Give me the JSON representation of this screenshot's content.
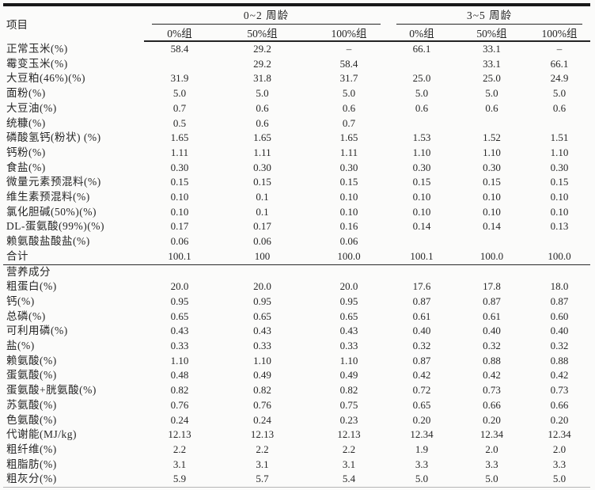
{
  "table": {
    "item_header": "项目",
    "groups": [
      {
        "label": "0~2 周龄",
        "columns": [
          "0%组",
          "50%组",
          "100%组"
        ]
      },
      {
        "label": "3~5 周龄",
        "columns": [
          "0%组",
          "50%组",
          "100%组"
        ]
      }
    ],
    "ingredient_rows": [
      {
        "label": "正常玉米(%)",
        "values": [
          "58.4",
          "29.2",
          "–",
          "66.1",
          "33.1",
          "–"
        ]
      },
      {
        "label": "霉变玉米(%)",
        "values": [
          "",
          "29.2",
          "58.4",
          "",
          "33.1",
          "66.1"
        ]
      },
      {
        "label": "大豆粕(46%)(%)",
        "values": [
          "31.9",
          "31.8",
          "31.7",
          "25.0",
          "25.0",
          "24.9"
        ]
      },
      {
        "label": "面粉(%)",
        "values": [
          "5.0",
          "5.0",
          "5.0",
          "5.0",
          "5.0",
          "5.0"
        ]
      },
      {
        "label": "大豆油(%)",
        "values": [
          "0.7",
          "0.6",
          "0.6",
          "0.6",
          "0.6",
          "0.6"
        ]
      },
      {
        "label": "统糠(%)",
        "values": [
          "0.5",
          "0.6",
          "0.7",
          "",
          "",
          ""
        ]
      },
      {
        "label": "磷酸氢钙(粉状) (%)",
        "values": [
          "1.65",
          "1.65",
          "1.65",
          "1.53",
          "1.52",
          "1.51"
        ]
      },
      {
        "label": "钙粉(%)",
        "values": [
          "1.11",
          "1.11",
          "1.11",
          "1.10",
          "1.10",
          "1.10"
        ]
      },
      {
        "label": "食盐(%)",
        "values": [
          "0.30",
          "0.30",
          "0.30",
          "0.30",
          "0.30",
          "0.30"
        ]
      },
      {
        "label": "微量元素预混料(%)",
        "values": [
          "0.15",
          "0.15",
          "0.15",
          "0.15",
          "0.15",
          "0.15"
        ]
      },
      {
        "label": "维生素预混料(%)",
        "values": [
          "0.10",
          "0.1",
          "0.10",
          "0.10",
          "0.10",
          "0.10"
        ]
      },
      {
        "label": "氯化胆碱(50%)(%)",
        "values": [
          "0.10",
          "0.1",
          "0.10",
          "0.10",
          "0.10",
          "0.10"
        ]
      },
      {
        "label": "DL-蛋氨酸(99%)(%)",
        "values": [
          "0.17",
          "0.17",
          "0.16",
          "0.14",
          "0.14",
          "0.13"
        ]
      },
      {
        "label": "赖氨酸盐酸盐(%)",
        "values": [
          "0.06",
          "0.06",
          "0.06",
          "",
          "",
          ""
        ]
      },
      {
        "label": "合计",
        "values": [
          "100.1",
          "100",
          "100.0",
          "100.1",
          "100.0",
          "100.0"
        ]
      }
    ],
    "section_header": "营养成分",
    "nutrient_rows": [
      {
        "label": "粗蛋白(%)",
        "values": [
          "20.0",
          "20.0",
          "20.0",
          "17.6",
          "17.8",
          "18.0"
        ]
      },
      {
        "label": "钙(%)",
        "values": [
          "0.95",
          "0.95",
          "0.95",
          "0.87",
          "0.87",
          "0.87"
        ]
      },
      {
        "label": "总磷(%)",
        "values": [
          "0.65",
          "0.65",
          "0.65",
          "0.61",
          "0.61",
          "0.60"
        ]
      },
      {
        "label": "可利用磷(%)",
        "values": [
          "0.43",
          "0.43",
          "0.43",
          "0.40",
          "0.40",
          "0.40"
        ]
      },
      {
        "label": "盐(%)",
        "values": [
          "0.33",
          "0.33",
          "0.33",
          "0.32",
          "0.32",
          "0.32"
        ]
      },
      {
        "label": "赖氨酸(%)",
        "values": [
          "1.10",
          "1.10",
          "1.10",
          "0.87",
          "0.88",
          "0.88"
        ]
      },
      {
        "label": "蛋氨酸(%)",
        "values": [
          "0.48",
          "0.49",
          "0.49",
          "0.42",
          "0.42",
          "0.42"
        ]
      },
      {
        "label": "蛋氨酸+胱氨酸(%)",
        "values": [
          "0.82",
          "0.82",
          "0.82",
          "0.72",
          "0.73",
          "0.73"
        ]
      },
      {
        "label": "苏氨酸(%)",
        "values": [
          "0.76",
          "0.76",
          "0.75",
          "0.65",
          "0.66",
          "0.66"
        ]
      },
      {
        "label": "色氨酸(%)",
        "values": [
          "0.24",
          "0.24",
          "0.23",
          "0.20",
          "0.20",
          "0.20"
        ]
      },
      {
        "label": "代谢能(MJ/kg)",
        "values": [
          "12.13",
          "12.13",
          "12.13",
          "12.34",
          "12.34",
          "12.34"
        ]
      },
      {
        "label": "粗纤维(%)",
        "values": [
          "2.2",
          "2.2",
          "2.2",
          "1.9",
          "2.0",
          "2.0"
        ]
      },
      {
        "label": "粗脂肪(%)",
        "values": [
          "3.1",
          "3.1",
          "3.1",
          "3.3",
          "3.3",
          "3.3"
        ]
      },
      {
        "label": "粗灰分(%)",
        "values": [
          "5.9",
          "5.7",
          "5.4",
          "5.0",
          "5.0",
          "5.0"
        ]
      }
    ]
  }
}
